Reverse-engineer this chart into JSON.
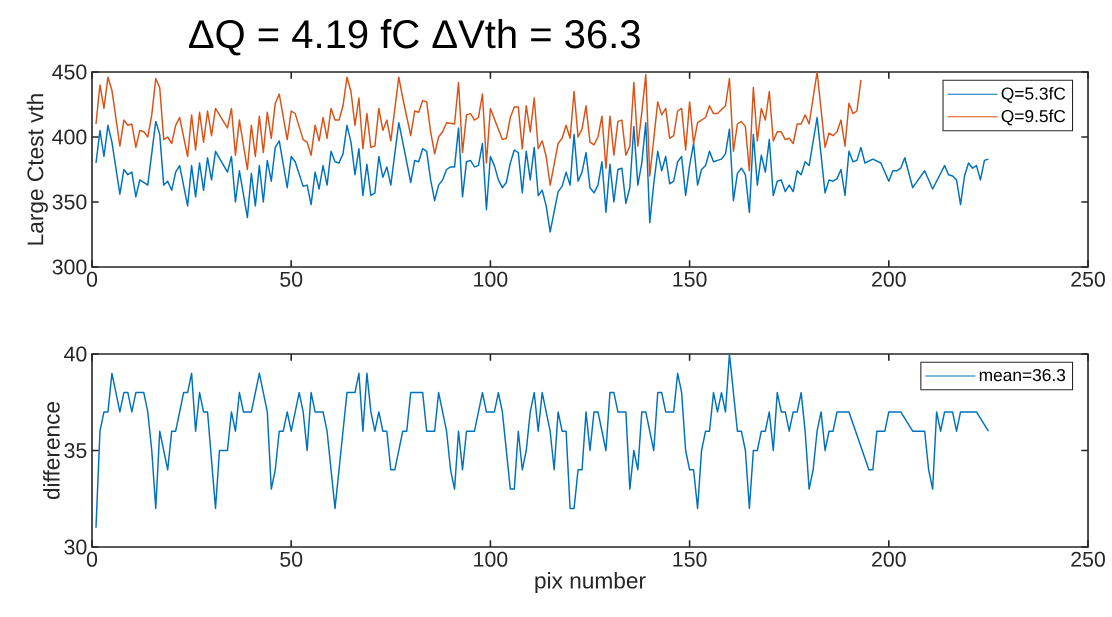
{
  "chart_data": [
    {
      "type": "line",
      "title": "ΔQ = 4.19 fC    ΔVth = 36.3",
      "ylabel": "Large Ctest vth",
      "xlim": [
        0,
        250
      ],
      "ylim": [
        300,
        450
      ],
      "xticks": [
        0,
        50,
        100,
        150,
        200,
        250
      ],
      "yticks": [
        300,
        350,
        400,
        450
      ],
      "legend": "top right",
      "series": [
        {
          "name": "Q=5.3fC",
          "color": "#0072bd",
          "x": [
            1,
            2,
            3,
            4,
            5,
            7,
            8,
            9,
            10,
            11,
            12,
            14,
            16,
            17,
            18,
            19,
            20,
            21,
            22,
            24,
            25,
            26,
            27,
            28,
            29,
            30,
            31,
            34,
            35,
            36,
            37,
            39,
            40,
            41,
            42,
            43,
            44,
            45,
            46,
            47,
            49,
            50,
            51,
            53,
            54,
            55,
            56,
            57,
            58,
            59,
            60,
            61,
            62,
            63,
            64,
            65,
            66,
            67,
            68,
            69,
            70,
            71,
            72,
            73,
            74,
            75,
            77,
            78,
            80,
            81,
            82,
            83,
            84,
            85,
            86,
            87,
            88,
            89,
            90,
            91,
            92,
            93,
            94,
            95,
            96,
            97,
            98,
            99,
            100,
            101,
            102,
            103,
            104,
            105,
            106,
            107,
            108,
            109,
            110,
            111,
            112,
            113,
            114,
            115,
            117,
            118,
            119,
            120,
            121,
            122,
            123,
            124,
            125,
            126,
            127,
            128,
            129,
            130,
            131,
            132,
            133,
            134,
            135,
            136,
            137,
            138,
            139,
            140,
            141,
            142,
            143,
            144,
            145,
            146,
            147,
            148,
            149,
            150,
            151,
            152,
            153,
            154,
            155,
            156,
            157,
            158,
            159,
            160,
            161,
            162,
            163,
            164,
            165,
            166,
            167,
            168,
            169,
            170,
            171,
            172,
            173,
            174,
            175,
            176,
            177,
            178,
            179,
            180,
            182,
            184,
            185,
            186,
            187,
            188,
            189,
            190,
            191,
            192,
            193,
            194,
            196,
            198,
            200,
            201,
            202,
            203,
            204,
            206,
            209,
            211,
            214,
            215,
            216,
            217,
            218,
            219,
            220,
            221,
            222,
            223,
            224,
            225
          ],
          "values": [
            380,
            405,
            385,
            409,
            396,
            356,
            375,
            371,
            373,
            354,
            367,
            363,
            412,
            402,
            363,
            366,
            359,
            373,
            378,
            347,
            378,
            354,
            380,
            359,
            384,
            367,
            389,
            373,
            385,
            350,
            374,
            338,
            372,
            347,
            378,
            350,
            382,
            366,
            392,
            397,
            361,
            385,
            381,
            362,
            363,
            348,
            373,
            360,
            378,
            363,
            389,
            381,
            380,
            387,
            409,
            396,
            371,
            391,
            355,
            379,
            355,
            357,
            385,
            369,
            377,
            363,
            411,
            396,
            365,
            382,
            381,
            391,
            389,
            367,
            351,
            363,
            367,
            375,
            377,
            377,
            407,
            354,
            381,
            382,
            377,
            378,
            395,
            344,
            385,
            378,
            367,
            361,
            365,
            380,
            390,
            388,
            357,
            389,
            367,
            392,
            355,
            359,
            347,
            327,
            358,
            362,
            373,
            363,
            402,
            366,
            373,
            388,
            361,
            357,
            363,
            381,
            342,
            379,
            350,
            375,
            376,
            349,
            361,
            408,
            363,
            380,
            411,
            334,
            364,
            389,
            374,
            385,
            364,
            366,
            381,
            385,
            355,
            378,
            395,
            363,
            375,
            378,
            389,
            381,
            382,
            383,
            387,
            406,
            351,
            372,
            376,
            371,
            342,
            402,
            363,
            386,
            373,
            398,
            355,
            366,
            367,
            358,
            363,
            358,
            374,
            371,
            381,
            378,
            415,
            357,
            367,
            366,
            368,
            375,
            355,
            389,
            381,
            382,
            392,
            380,
            383,
            380,
            366,
            374,
            374,
            376,
            384,
            361,
            374,
            360,
            378,
            371,
            370,
            367,
            348,
            370,
            380,
            376,
            378,
            367,
            382,
            383
          ]
        },
        {
          "name": "Q=9.5fC",
          "color": "#d95319",
          "x": [
            1,
            2,
            3,
            4,
            5,
            7,
            8,
            9,
            10,
            11,
            12,
            13,
            14,
            15,
            16,
            17,
            18,
            19,
            20,
            21,
            22,
            24,
            25,
            26,
            27,
            28,
            29,
            30,
            31,
            34,
            35,
            36,
            37,
            39,
            40,
            41,
            42,
            43,
            44,
            45,
            46,
            47,
            49,
            50,
            51,
            53,
            54,
            55,
            56,
            57,
            58,
            59,
            60,
            61,
            62,
            63,
            64,
            65,
            66,
            67,
            68,
            69,
            70,
            71,
            72,
            73,
            74,
            75,
            77,
            78,
            80,
            81,
            82,
            83,
            84,
            85,
            86,
            87,
            88,
            89,
            91,
            92,
            93,
            94,
            95,
            96,
            97,
            98,
            99,
            100,
            102,
            103,
            104,
            105,
            106,
            107,
            108,
            109,
            110,
            111,
            112,
            113,
            114,
            115,
            117,
            118,
            119,
            120,
            121,
            122,
            123,
            124,
            125,
            126,
            127,
            128,
            129,
            130,
            131,
            132,
            133,
            134,
            135,
            136,
            137,
            138,
            139,
            140,
            142,
            143,
            144,
            145,
            146,
            147,
            148,
            149,
            150,
            151,
            152,
            154,
            155,
            156,
            157,
            159,
            160,
            161,
            162,
            163,
            164,
            165,
            166,
            167,
            168,
            169,
            170,
            171,
            172,
            173,
            174,
            175,
            176,
            177,
            178,
            179,
            180,
            182,
            184,
            185,
            186,
            187,
            188,
            189,
            190,
            191,
            192,
            193
          ],
          "values": [
            410,
            440,
            422,
            446,
            436,
            393,
            413,
            409,
            410,
            392,
            405,
            404,
            400,
            417,
            445,
            438,
            398,
            400,
            395,
            409,
            415,
            385,
            417,
            390,
            419,
            396,
            420,
            401,
            422,
            407,
            422,
            386,
            413,
            375,
            409,
            385,
            416,
            388,
            419,
            399,
            426,
            433,
            398,
            420,
            418,
            398,
            396,
            386,
            409,
            397,
            415,
            399,
            422,
            413,
            413,
            424,
            446,
            435,
            409,
            430,
            391,
            418,
            392,
            393,
            422,
            405,
            413,
            397,
            446,
            430,
            401,
            420,
            419,
            428,
            427,
            404,
            387,
            400,
            404,
            411,
            410,
            442,
            388,
            417,
            418,
            413,
            415,
            433,
            380,
            422,
            406,
            398,
            399,
            415,
            423,
            423,
            391,
            424,
            404,
            430,
            391,
            397,
            385,
            363,
            395,
            399,
            409,
            399,
            435,
            400,
            406,
            424,
            396,
            394,
            400,
            416,
            376,
            416,
            386,
            412,
            413,
            386,
            393,
            442,
            393,
            419,
            448,
            370,
            427,
            417,
            422,
            399,
            401,
            420,
            422,
            390,
            427,
            395,
            411,
            415,
            424,
            418,
            418,
            424,
            445,
            389,
            410,
            412,
            408,
            374,
            438,
            397,
            422,
            413,
            435,
            397,
            404,
            404,
            398,
            399,
            395,
            410,
            410,
            417,
            410,
            450,
            392,
            403,
            401,
            404,
            413,
            393,
            426,
            418,
            420,
            444
          ]
        }
      ]
    },
    {
      "type": "line",
      "xlabel": "pix number",
      "ylabel": "difference",
      "xlim": [
        0,
        250
      ],
      "ylim": [
        30,
        40
      ],
      "xticks": [
        0,
        50,
        100,
        150,
        200,
        250
      ],
      "yticks": [
        30,
        35,
        40
      ],
      "legend": "top right",
      "series": [
        {
          "name": "mean=36.3",
          "color": "#0072bd",
          "x": [
            1,
            2,
            3,
            4,
            5,
            7,
            8,
            9,
            10,
            11,
            13,
            14,
            15,
            16,
            17,
            19,
            20,
            21,
            23,
            24,
            25,
            26,
            27,
            28,
            29,
            31,
            32,
            34,
            35,
            36,
            37,
            38,
            40,
            42,
            44,
            45,
            46,
            47,
            48,
            49,
            50,
            52,
            53,
            54,
            55,
            56,
            58,
            59,
            61,
            63,
            64,
            66,
            67,
            68,
            69,
            70,
            71,
            72,
            73,
            74,
            75,
            76,
            78,
            79,
            80,
            83,
            84,
            86,
            87,
            89,
            90,
            91,
            92,
            93,
            94,
            96,
            98,
            99,
            101,
            102,
            103,
            105,
            106,
            107,
            108,
            109,
            110,
            111,
            112,
            113,
            115,
            116,
            117,
            118,
            119,
            120,
            121,
            122,
            123,
            124,
            125,
            126,
            127,
            129,
            130,
            131,
            132,
            134,
            135,
            136,
            137,
            138,
            139,
            141,
            142,
            143,
            144,
            146,
            147,
            148,
            149,
            150,
            151,
            152,
            153,
            154,
            155,
            156,
            157,
            158,
            159,
            160,
            162,
            163,
            164,
            165,
            166,
            167,
            168,
            169,
            170,
            171,
            172,
            173,
            174,
            175,
            176,
            177,
            178,
            179,
            180,
            181,
            182,
            183,
            184,
            185,
            186,
            187,
            189,
            190,
            195,
            196,
            197,
            198,
            199,
            200,
            201,
            202,
            203,
            206,
            209,
            210,
            211,
            212,
            213,
            214,
            215,
            216,
            217,
            218,
            221,
            222,
            225
          ],
          "values": [
            31,
            36,
            37,
            37,
            39,
            37,
            38,
            38,
            37,
            38,
            38,
            37,
            35,
            32,
            36,
            34,
            36,
            36,
            38,
            38,
            39,
            36,
            38,
            37,
            37,
            32,
            35,
            35,
            37,
            36,
            38,
            37,
            37,
            39,
            37,
            33,
            34,
            36,
            36,
            37,
            36,
            38,
            37,
            35,
            38,
            37,
            37,
            36,
            32,
            36,
            38,
            38,
            39,
            36,
            39,
            37,
            36,
            37,
            36,
            36,
            34,
            34,
            36,
            36,
            38,
            38,
            36,
            36,
            38,
            36,
            34,
            33,
            36,
            34,
            36,
            36,
            38,
            37,
            37,
            38,
            37,
            33,
            33,
            36,
            34,
            35,
            37,
            38,
            36,
            38,
            36,
            34,
            37,
            36,
            36,
            32,
            32,
            34,
            34,
            37,
            35,
            37,
            37,
            35,
            38,
            38,
            37,
            37,
            33,
            35,
            34,
            37,
            37,
            35,
            38,
            38,
            37,
            37,
            39,
            38,
            35,
            34,
            34,
            32,
            35,
            36,
            36,
            38,
            37,
            38,
            37,
            40,
            36,
            36,
            35,
            32,
            35,
            35,
            36,
            36,
            37,
            35,
            38,
            37,
            37,
            36,
            37,
            37,
            38,
            36,
            33,
            34,
            36,
            37,
            35,
            36,
            36,
            37,
            37,
            37,
            34,
            34,
            36,
            36,
            36,
            37,
            37,
            37,
            37,
            36,
            36,
            34,
            33,
            37,
            36,
            37,
            37,
            37,
            36,
            37,
            37,
            37,
            36
          ]
        }
      ]
    }
  ]
}
